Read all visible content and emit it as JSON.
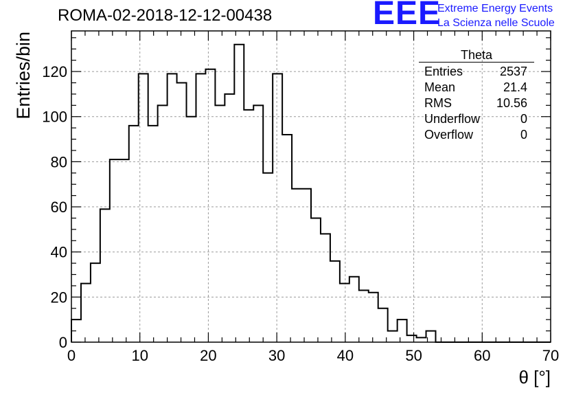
{
  "header": {
    "run_title": "ROMA-02-2018-12-12-00438"
  },
  "logo": {
    "mark": "EEE",
    "line1": "Extreme Energy Events",
    "line2": "La Scienza nelle Scuole",
    "color": "#1a1aff"
  },
  "stats_box": {
    "title": "Theta",
    "rows": [
      {
        "label": "Entries",
        "value": "2537"
      },
      {
        "label": "Mean",
        "value": "21.4"
      },
      {
        "label": "RMS",
        "value": "10.56"
      },
      {
        "label": "Underflow",
        "value": "0"
      },
      {
        "label": "Overflow",
        "value": "0"
      }
    ]
  },
  "chart_data": {
    "type": "bar",
    "histogram": true,
    "xlabel": "θ [°]",
    "ylabel": "Entries/bin",
    "xlim": [
      0,
      70
    ],
    "ylim": [
      0,
      138
    ],
    "bin_width": 1.4,
    "bin_edges_start": 0,
    "values": [
      10,
      26,
      35,
      59,
      81,
      81,
      96,
      119,
      96,
      105,
      119,
      115,
      100,
      119,
      121,
      105,
      110,
      132,
      103,
      105,
      75,
      119,
      92,
      68,
      68,
      55,
      48,
      36,
      26,
      29,
      23,
      22,
      15,
      5,
      10,
      3,
      2,
      5,
      0,
      0,
      0,
      0,
      0,
      0,
      0,
      0,
      0,
      0,
      0,
      0
    ],
    "x_ticks": [
      0,
      10,
      20,
      30,
      40,
      50,
      60,
      70
    ],
    "y_ticks": [
      0,
      20,
      40,
      60,
      80,
      100,
      120
    ],
    "grid": true,
    "line_color": "#000000",
    "grid_color": "#9a9a9a"
  }
}
